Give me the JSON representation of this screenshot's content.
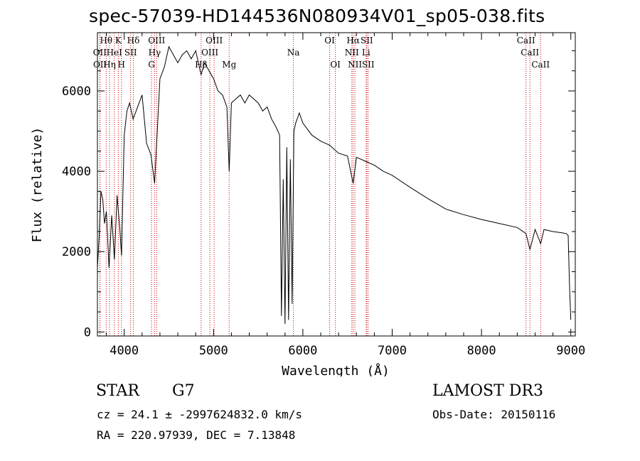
{
  "header": {
    "title": "spec-57039-HD144536N080934V01_sp05-038.fits"
  },
  "info": {
    "class_label": "STAR",
    "subclass_label": "G7",
    "survey": "LAMOST DR3",
    "cz_line": "cz = 24.1 ± -2997624832.0 km/s",
    "obs_date": "Obs-Date: 20150116",
    "radec_line": "RA = 220.97939, DEC =   7.13848"
  },
  "colors": {
    "axis": "#000000",
    "spectrum": "#000000",
    "line_marker": "#cc0000"
  },
  "chart_data": {
    "type": "line",
    "title": "spec-57039-HD144536N080934V01_sp05-038.fits",
    "xlabel": "Wavelength (Å)",
    "ylabel": "Flux (relative)",
    "xlim": [
      3700,
      9050
    ],
    "ylim": [
      -100,
      7450
    ],
    "xticks": [
      4000,
      5000,
      6000,
      7000,
      8000,
      9000
    ],
    "yticks": [
      0,
      2000,
      4000,
      6000
    ],
    "series": [
      {
        "name": "spectrum",
        "x": [
          3700,
          3720,
          3740,
          3760,
          3780,
          3800,
          3830,
          3860,
          3890,
          3920,
          3950,
          3970,
          4000,
          4030,
          4060,
          4100,
          4150,
          4200,
          4250,
          4300,
          4340,
          4400,
          4450,
          4500,
          4550,
          4600,
          4650,
          4700,
          4750,
          4800,
          4861,
          4900,
          4950,
          5000,
          5050,
          5100,
          5150,
          5175,
          5200,
          5250,
          5300,
          5350,
          5400,
          5450,
          5500,
          5550,
          5600,
          5650,
          5700,
          5740,
          5760,
          5780,
          5800,
          5820,
          5840,
          5860,
          5880,
          5900,
          5920,
          5960,
          6000,
          6100,
          6200,
          6300,
          6400,
          6500,
          6563,
          6600,
          6700,
          6800,
          6900,
          7000,
          7200,
          7400,
          7600,
          7800,
          8000,
          8200,
          8400,
          8498,
          8542,
          8600,
          8662,
          8700,
          8800,
          8900,
          8950,
          8970,
          8985,
          9000
        ],
        "values": [
          1600,
          2400,
          3500,
          3300,
          2700,
          3000,
          1600,
          2900,
          1800,
          3400,
          2600,
          1900,
          4900,
          5500,
          5700,
          5300,
          5600,
          5900,
          4700,
          4400,
          3700,
          6300,
          6600,
          7100,
          6900,
          6700,
          6900,
          7000,
          6800,
          7000,
          6400,
          6700,
          6500,
          6300,
          6000,
          5900,
          5600,
          4000,
          5700,
          5800,
          5900,
          5700,
          5900,
          5800,
          5700,
          5500,
          5600,
          5300,
          5100,
          4900,
          400,
          3800,
          200,
          4600,
          300,
          4300,
          700,
          5000,
          5200,
          5450,
          5200,
          4900,
          4750,
          4650,
          4450,
          4380,
          3700,
          4350,
          4250,
          4150,
          4000,
          3900,
          3600,
          3320,
          3060,
          2920,
          2800,
          2700,
          2600,
          2450,
          2050,
          2550,
          2200,
          2550,
          2500,
          2470,
          2450,
          2400,
          1200,
          300
        ]
      }
    ],
    "line_markers": [
      {
        "label": "Hθ",
        "wavelength": 3798,
        "row": 0
      },
      {
        "label": "OII",
        "wavelength": 3727,
        "row": 1
      },
      {
        "label": "OII",
        "wavelength": 3729,
        "row": 2
      },
      {
        "label": "Hη",
        "wavelength": 3835,
        "row": 2
      },
      {
        "label": "HeI",
        "wavelength": 3889,
        "row": 1
      },
      {
        "label": "K",
        "wavelength": 3934,
        "row": 0
      },
      {
        "label": "H",
        "wavelength": 3969,
        "row": 2
      },
      {
        "label": "SII",
        "wavelength": 4072,
        "row": 1
      },
      {
        "label": "Hδ",
        "wavelength": 4102,
        "row": 0
      },
      {
        "label": "OIII",
        "wavelength": 4363,
        "row": 0
      },
      {
        "label": "Hγ",
        "wavelength": 4340,
        "row": 1
      },
      {
        "label": "G",
        "wavelength": 4305,
        "row": 2
      },
      {
        "label": "OIII",
        "wavelength": 5007,
        "row": 0
      },
      {
        "label": "OIII",
        "wavelength": 4959,
        "row": 1
      },
      {
        "label": "Hβ",
        "wavelength": 4861,
        "row": 2
      },
      {
        "label": "Mg",
        "wavelength": 5175,
        "row": 2
      },
      {
        "label": "Na",
        "wavelength": 5894,
        "row": 1
      },
      {
        "label": "OI",
        "wavelength": 6300,
        "row": 0
      },
      {
        "label": "OI",
        "wavelength": 6364,
        "row": 2
      },
      {
        "label": "Hα",
        "wavelength": 6563,
        "row": 0
      },
      {
        "label": "NII",
        "wavelength": 6548,
        "row": 1
      },
      {
        "label": "NII",
        "wavelength": 6583,
        "row": 2
      },
      {
        "label": "SII",
        "wavelength": 6716,
        "row": 0
      },
      {
        "label": "Li",
        "wavelength": 6708,
        "row": 1
      },
      {
        "label": "SII",
        "wavelength": 6731,
        "row": 2
      },
      {
        "label": "CaII",
        "wavelength": 8498,
        "row": 0
      },
      {
        "label": "CaII",
        "wavelength": 8542,
        "row": 1
      },
      {
        "label": "CaII",
        "wavelength": 8662,
        "row": 2
      }
    ]
  }
}
